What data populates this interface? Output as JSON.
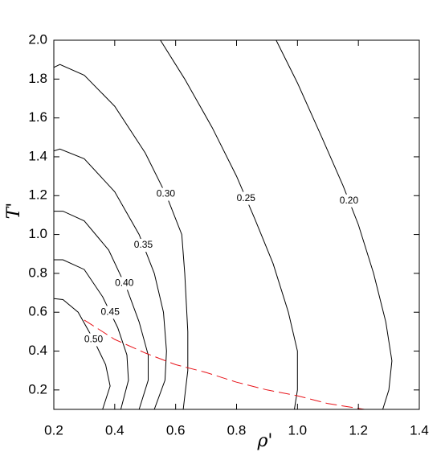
{
  "chart_data": {
    "type": "line",
    "x_label": "ρ'",
    "y_label": "T'",
    "xlim": [
      0.2,
      1.4
    ],
    "ylim": [
      0.1,
      2.0
    ],
    "xticks": [
      0.2,
      0.4,
      0.6,
      0.8,
      {
        "value": 1.0,
        "label": "1.0"
      },
      1.2,
      1.4
    ],
    "yticks": [
      0.2,
      0.4,
      0.6,
      0.8,
      {
        "value": 1.0,
        "label": "1.0"
      },
      1.2,
      1.4,
      1.6,
      1.8,
      {
        "value": 2.0,
        "label": "2.0"
      }
    ],
    "series": [
      {
        "name": "0.20",
        "color": "#000000",
        "x": [
          0.93,
          1.0,
          1.08,
          1.15,
          1.2,
          1.25,
          1.29,
          1.31,
          1.3,
          1.28
        ],
        "y": [
          2.0,
          1.78,
          1.5,
          1.25,
          1.05,
          0.8,
          0.55,
          0.35,
          0.2,
          0.1
        ]
      },
      {
        "name": "0.25",
        "color": "#000000",
        "x": [
          0.55,
          0.63,
          0.72,
          0.8,
          0.86,
          0.92,
          0.97,
          1.0,
          1.0,
          0.99
        ],
        "y": [
          2.0,
          1.8,
          1.55,
          1.3,
          1.08,
          0.85,
          0.6,
          0.4,
          0.2,
          0.1
        ]
      },
      {
        "name": "0.30",
        "color": "#000000",
        "x": [
          0.2,
          0.22,
          0.3,
          0.4,
          0.5,
          0.57,
          0.62,
          0.63,
          0.64,
          0.64,
          0.625
        ],
        "y": [
          1.86,
          1.875,
          1.82,
          1.66,
          1.42,
          1.2,
          1.0,
          0.8,
          0.5,
          0.3,
          0.1
        ]
      },
      {
        "name": "0.35",
        "color": "#000000",
        "x": [
          0.2,
          0.22,
          0.3,
          0.4,
          0.48,
          0.53,
          0.56,
          0.57,
          0.565,
          0.53
        ],
        "y": [
          1.43,
          1.44,
          1.39,
          1.22,
          1.0,
          0.8,
          0.6,
          0.4,
          0.25,
          0.1
        ]
      },
      {
        "name": "0.40",
        "color": "#000000",
        "x": [
          0.2,
          0.23,
          0.3,
          0.38,
          0.44,
          0.48,
          0.51,
          0.51,
          0.48
        ],
        "y": [
          1.12,
          1.12,
          1.07,
          0.92,
          0.72,
          0.55,
          0.38,
          0.25,
          0.1
        ]
      },
      {
        "name": "0.45",
        "color": "#000000",
        "x": [
          0.2,
          0.23,
          0.3,
          0.36,
          0.41,
          0.44,
          0.445,
          0.42
        ],
        "y": [
          0.87,
          0.87,
          0.82,
          0.68,
          0.52,
          0.38,
          0.25,
          0.1
        ]
      },
      {
        "name": "0.50",
        "color": "#000000",
        "x": [
          0.2,
          0.23,
          0.28,
          0.33,
          0.37,
          0.385,
          0.36
        ],
        "y": [
          0.67,
          0.665,
          0.6,
          0.46,
          0.33,
          0.22,
          0.1
        ]
      },
      {
        "color": "#e8141a",
        "style": "dashed",
        "x": [
          0.3,
          0.4,
          0.5,
          0.6,
          0.7,
          0.8,
          0.9,
          1.0,
          1.1,
          1.22
        ],
        "y": [
          0.56,
          0.46,
          0.39,
          0.33,
          0.29,
          0.24,
          0.2,
          0.17,
          0.13,
          0.1
        ]
      }
    ]
  }
}
